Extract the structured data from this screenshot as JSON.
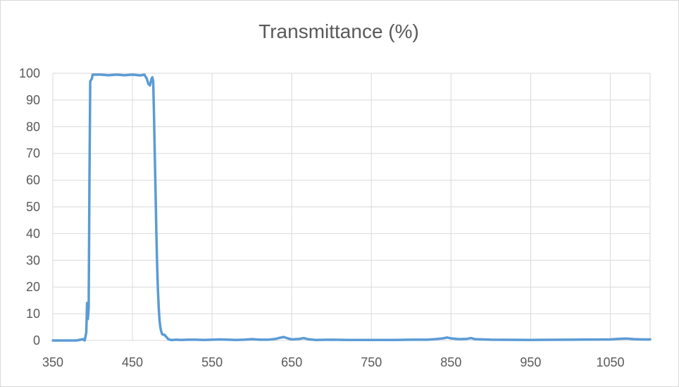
{
  "chart_data": {
    "type": "line",
    "title": "Transmittance (%)",
    "xlabel": "",
    "ylabel": "",
    "xlim": [
      350,
      1100
    ],
    "ylim": [
      0,
      100
    ],
    "x_ticks": [
      350,
      450,
      550,
      650,
      750,
      850,
      950,
      1050
    ],
    "y_ticks": [
      0,
      10,
      20,
      30,
      40,
      50,
      60,
      70,
      80,
      90,
      100
    ],
    "x_tick_labels": [
      "350",
      "450",
      "550",
      "650",
      "750",
      "850",
      "950",
      "1050"
    ],
    "y_tick_labels": [
      "0",
      "10",
      "20",
      "30",
      "40",
      "50",
      "60",
      "70",
      "80",
      "90",
      "100"
    ],
    "grid": {
      "vertical": true,
      "horizontal": true
    },
    "legend": "none",
    "colors": {
      "series": "#5b9bd5",
      "grid": "#d9d9d9",
      "text": "#595959"
    },
    "series": [
      {
        "x": [
          350,
          380,
          388,
          390,
          392,
          393,
          394,
          395,
          396,
          397,
          398,
          399,
          400,
          402,
          405,
          410,
          420,
          430,
          440,
          450,
          460,
          465,
          468,
          470,
          472,
          474,
          475,
          476,
          477,
          478,
          479,
          480,
          481,
          482,
          483,
          484,
          485,
          486,
          487,
          488,
          490,
          492,
          495,
          498,
          500,
          505,
          510,
          520,
          530,
          540,
          550,
          560,
          570,
          580,
          590,
          600,
          610,
          620,
          630,
          635,
          640,
          645,
          650,
          660,
          665,
          670,
          680,
          700,
          720,
          750,
          780,
          800,
          820,
          830,
          840,
          845,
          850,
          860,
          870,
          875,
          880,
          900,
          950,
          1000,
          1050,
          1060,
          1070,
          1080,
          1090,
          1100
        ],
        "y": [
          0,
          0,
          0.5,
          0,
          3,
          14,
          8,
          12,
          60,
          97,
          97.5,
          98,
          99.5,
          99.5,
          99.5,
          99.5,
          99.3,
          99.5,
          99.3,
          99.5,
          99.2,
          99.5,
          98,
          96,
          95.5,
          98,
          98.5,
          97,
          85,
          70,
          55,
          40,
          28,
          19,
          12,
          7.5,
          5,
          3.5,
          2.5,
          2.2,
          2.2,
          1.5,
          0.5,
          0.2,
          0.2,
          0.3,
          0.2,
          0.3,
          0.3,
          0.2,
          0.3,
          0.4,
          0.3,
          0.2,
          0.3,
          0.5,
          0.3,
          0.3,
          0.6,
          1,
          1.3,
          0.8,
          0.4,
          0.6,
          0.9,
          0.5,
          0.2,
          0.3,
          0.2,
          0.2,
          0.2,
          0.3,
          0.3,
          0.5,
          0.8,
          1.1,
          0.8,
          0.5,
          0.6,
          0.9,
          0.5,
          0.3,
          0.2,
          0.3,
          0.4,
          0.6,
          0.7,
          0.5,
          0.4,
          0.4
        ]
      }
    ]
  }
}
